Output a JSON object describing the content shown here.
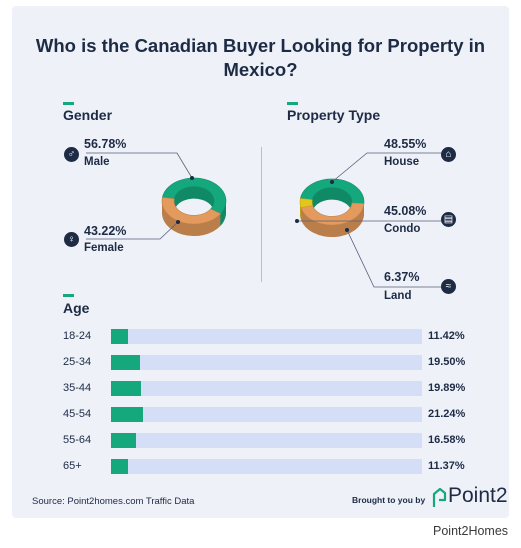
{
  "title": "Who is the Canadian Buyer Looking for Property in Mexico?",
  "gender": {
    "section_title": "Gender",
    "male": {
      "pct": "56.78%",
      "label": "Male",
      "icon": "male-symbol-icon"
    },
    "female": {
      "pct": "43.22%",
      "label": "Female",
      "icon": "female-symbol-icon"
    }
  },
  "property": {
    "section_title": "Property Type",
    "house": {
      "pct": "48.55%",
      "label": "House",
      "icon": "house-icon"
    },
    "condo": {
      "pct": "45.08%",
      "label": "Condo",
      "icon": "building-icon"
    },
    "land": {
      "pct": "6.37%",
      "label": "Land",
      "icon": "land-icon"
    }
  },
  "age": {
    "section_title": "Age"
  },
  "footer": {
    "source": "Source: Point2homes.com Traffic Data",
    "brought": "Brought to you by",
    "logo_text": "Point2"
  },
  "caption": "Point2Homes",
  "colors": {
    "green": "#14a87c",
    "orange": "#e39a5c",
    "yellow": "#e6c41c",
    "navy": "#1d2b45",
    "track": "#d4def6"
  },
  "chart_data": [
    {
      "type": "pie",
      "title": "Gender",
      "categories": [
        "Male",
        "Female"
      ],
      "values": [
        56.78,
        43.22
      ]
    },
    {
      "type": "pie",
      "title": "Property Type",
      "categories": [
        "House",
        "Condo",
        "Land"
      ],
      "values": [
        48.55,
        45.08,
        6.37
      ]
    },
    {
      "type": "bar",
      "title": "Age",
      "categories": [
        "18-24",
        "25-34",
        "35-44",
        "45-54",
        "55-64",
        "65+"
      ],
      "values": [
        11.42,
        19.5,
        19.89,
        21.24,
        16.58,
        11.37
      ],
      "value_labels": [
        "11.42%",
        "19.50%",
        "19.89%",
        "21.24%",
        "16.58%",
        "11.37%"
      ]
    }
  ]
}
